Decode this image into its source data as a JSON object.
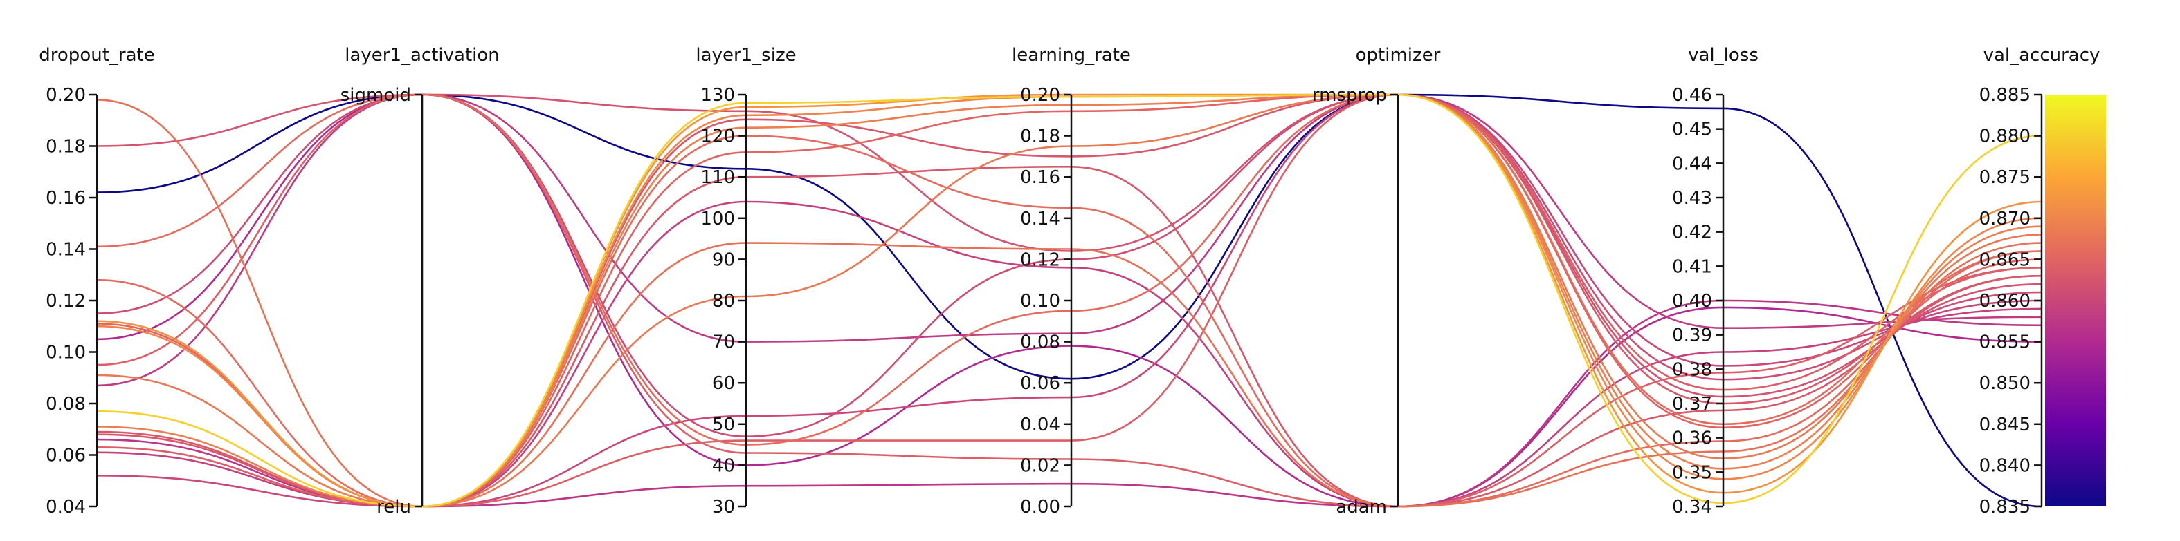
{
  "chart_data": {
    "type": "parallel_coordinates",
    "axes": [
      {
        "name": "dropout_rate",
        "kind": "numeric",
        "range": [
          0.04,
          0.2
        ],
        "ticks": [
          "0.04",
          "0.06",
          "0.08",
          "0.10",
          "0.12",
          "0.14",
          "0.16",
          "0.18",
          "0.20"
        ]
      },
      {
        "name": "layer1_activation",
        "kind": "categorical",
        "categories": [
          "relu",
          "sigmoid"
        ],
        "ticks": [
          "relu",
          "sigmoid"
        ]
      },
      {
        "name": "layer1_size",
        "kind": "numeric",
        "range": [
          30,
          130
        ],
        "ticks": [
          "30",
          "40",
          "50",
          "60",
          "70",
          "80",
          "90",
          "100",
          "110",
          "120",
          "130"
        ]
      },
      {
        "name": "learning_rate",
        "kind": "numeric",
        "range": [
          0.0,
          0.2
        ],
        "ticks": [
          "0.00",
          "0.02",
          "0.04",
          "0.06",
          "0.08",
          "0.10",
          "0.12",
          "0.14",
          "0.16",
          "0.18",
          "0.20"
        ]
      },
      {
        "name": "optimizer",
        "kind": "categorical",
        "categories": [
          "adam",
          "rmsprop"
        ],
        "ticks": [
          "adam",
          "rmsprop"
        ]
      },
      {
        "name": "val_loss",
        "kind": "numeric",
        "range": [
          0.34,
          0.46
        ],
        "ticks": [
          "0.34",
          "0.35",
          "0.36",
          "0.37",
          "0.38",
          "0.39",
          "0.40",
          "0.41",
          "0.42",
          "0.43",
          "0.44",
          "0.45",
          "0.46"
        ]
      },
      {
        "name": "val_accuracy",
        "kind": "numeric",
        "range": [
          0.835,
          0.885
        ],
        "ticks": [
          "0.835",
          "0.840",
          "0.845",
          "0.850",
          "0.855",
          "0.860",
          "0.865",
          "0.870",
          "0.875",
          "0.880",
          "0.885"
        ]
      }
    ],
    "color_by": "val_accuracy",
    "colormap": [
      "#0d0887",
      "#6a00a8",
      "#b12a90",
      "#e16462",
      "#fca636",
      "#f0f921"
    ],
    "colorbar_range": [
      0.835,
      0.885
    ],
    "colorbar_ticks": [
      "0.835",
      "0.840",
      "0.845",
      "0.850",
      "0.855",
      "0.860",
      "0.865",
      "0.870",
      "0.875",
      "0.880",
      "0.885"
    ],
    "series": [
      {
        "values": [
          0.162,
          "sigmoid",
          112,
          0.062,
          "rmsprop",
          0.456,
          0.835
        ]
      },
      {
        "values": [
          0.066,
          "relu",
          35,
          0.011,
          "adam",
          0.4,
          0.857
        ]
      },
      {
        "values": [
          0.105,
          "sigmoid",
          40,
          0.078,
          "adam",
          0.398,
          0.855
        ]
      },
      {
        "values": [
          0.061,
          "relu",
          104,
          0.116,
          "adam",
          0.385,
          0.859
        ]
      },
      {
        "values": [
          0.087,
          "sigmoid",
          70,
          0.084,
          "rmsprop",
          0.392,
          0.858
        ]
      },
      {
        "values": [
          0.052,
          "relu",
          52,
          0.053,
          "rmsprop",
          0.381,
          0.86
        ]
      },
      {
        "values": [
          0.115,
          "sigmoid",
          47,
          0.12,
          "rmsprop",
          0.377,
          0.861
        ]
      },
      {
        "values": [
          0.18,
          "sigmoid",
          126,
          0.124,
          "rmsprop",
          0.372,
          0.862
        ]
      },
      {
        "values": [
          0.068,
          "relu",
          124,
          0.17,
          "rmsprop",
          0.37,
          0.863
        ]
      },
      {
        "values": [
          0.069,
          "relu",
          110,
          0.165,
          "adam",
          0.368,
          0.863
        ]
      },
      {
        "values": [
          0.063,
          "relu",
          46,
          0.032,
          "rmsprop",
          0.374,
          0.864
        ]
      },
      {
        "values": [
          0.095,
          "sigmoid",
          43,
          0.023,
          "adam",
          0.379,
          0.864
        ]
      },
      {
        "values": [
          0.111,
          "relu",
          116,
          0.192,
          "rmsprop",
          0.363,
          0.865
        ]
      },
      {
        "values": [
          0.128,
          "relu",
          120,
          0.145,
          "adam",
          0.359,
          0.866
        ]
      },
      {
        "values": [
          0.141,
          "sigmoid",
          45,
          0.095,
          "rmsprop",
          0.364,
          0.866
        ]
      },
      {
        "values": [
          0.198,
          "relu",
          94,
          0.125,
          "adam",
          0.356,
          0.867
        ]
      },
      {
        "values": [
          0.091,
          "relu",
          81,
          0.175,
          "rmsprop",
          0.354,
          0.868
        ]
      },
      {
        "values": [
          0.071,
          "relu",
          122,
          0.195,
          "rmsprop",
          0.351,
          0.869
        ]
      },
      {
        "values": [
          0.11,
          "relu",
          125,
          0.199,
          "rmsprop",
          0.348,
          0.87
        ]
      },
      {
        "values": [
          0.112,
          "relu",
          127,
          0.2,
          "rmsprop",
          0.344,
          0.872
        ]
      },
      {
        "values": [
          0.077,
          "relu",
          128,
          0.199,
          "rmsprop",
          0.341,
          0.88
        ]
      }
    ]
  }
}
